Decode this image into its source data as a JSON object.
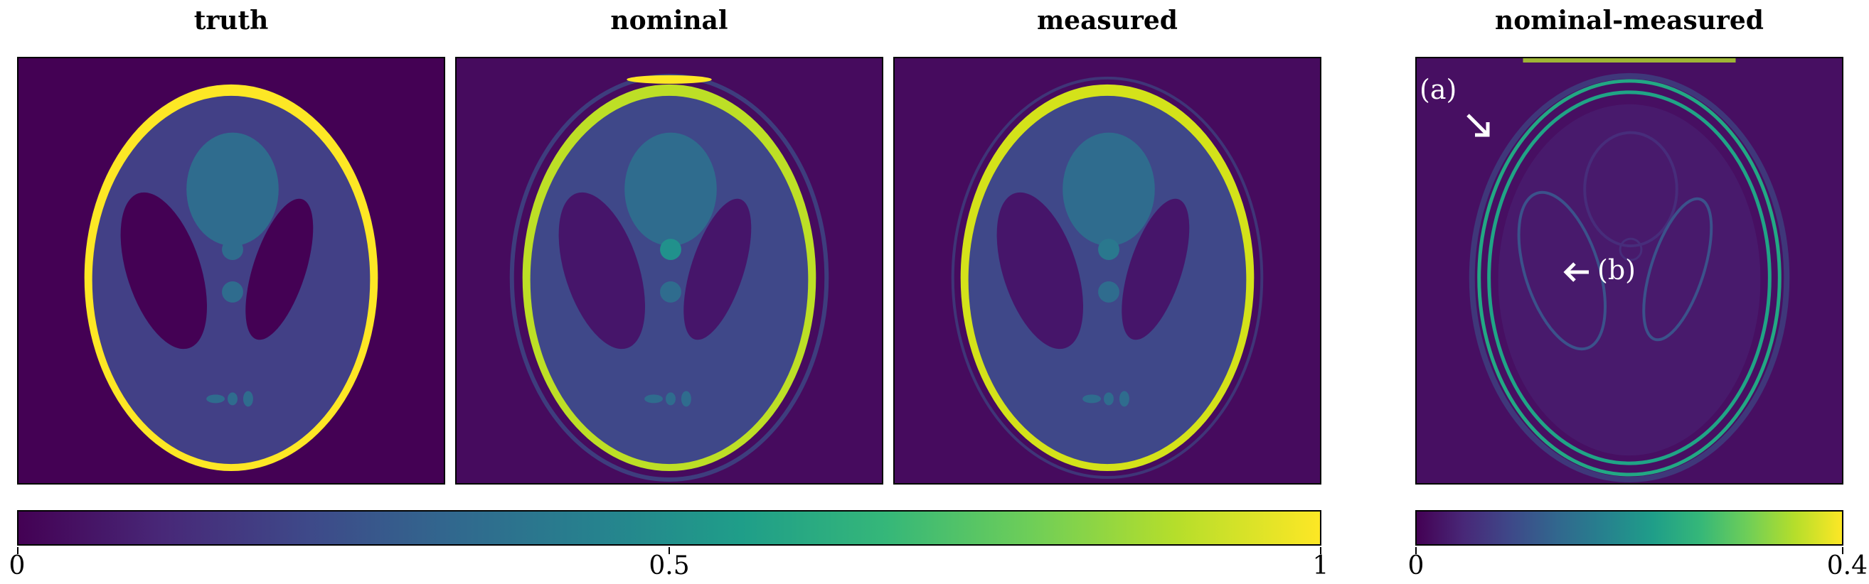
{
  "panels": [
    {
      "title": "truth"
    },
    {
      "title": "nominal"
    },
    {
      "title": "measured"
    },
    {
      "title": "nominal-measured"
    }
  ],
  "colorbars": [
    {
      "ticks": [
        "0",
        "0.5",
        "1"
      ],
      "range": [
        0,
        1
      ],
      "colormap": "viridis"
    },
    {
      "ticks": [
        "0",
        "0.4"
      ],
      "range": [
        0,
        0.4
      ],
      "colormap": "viridis"
    }
  ],
  "annotations": {
    "a": "(a)",
    "b": "(b)"
  },
  "colors": {
    "dark": "#440154",
    "bright": "#fde725",
    "mid": "#3b528b",
    "teal": "#2a788e",
    "green": "#21918c"
  }
}
